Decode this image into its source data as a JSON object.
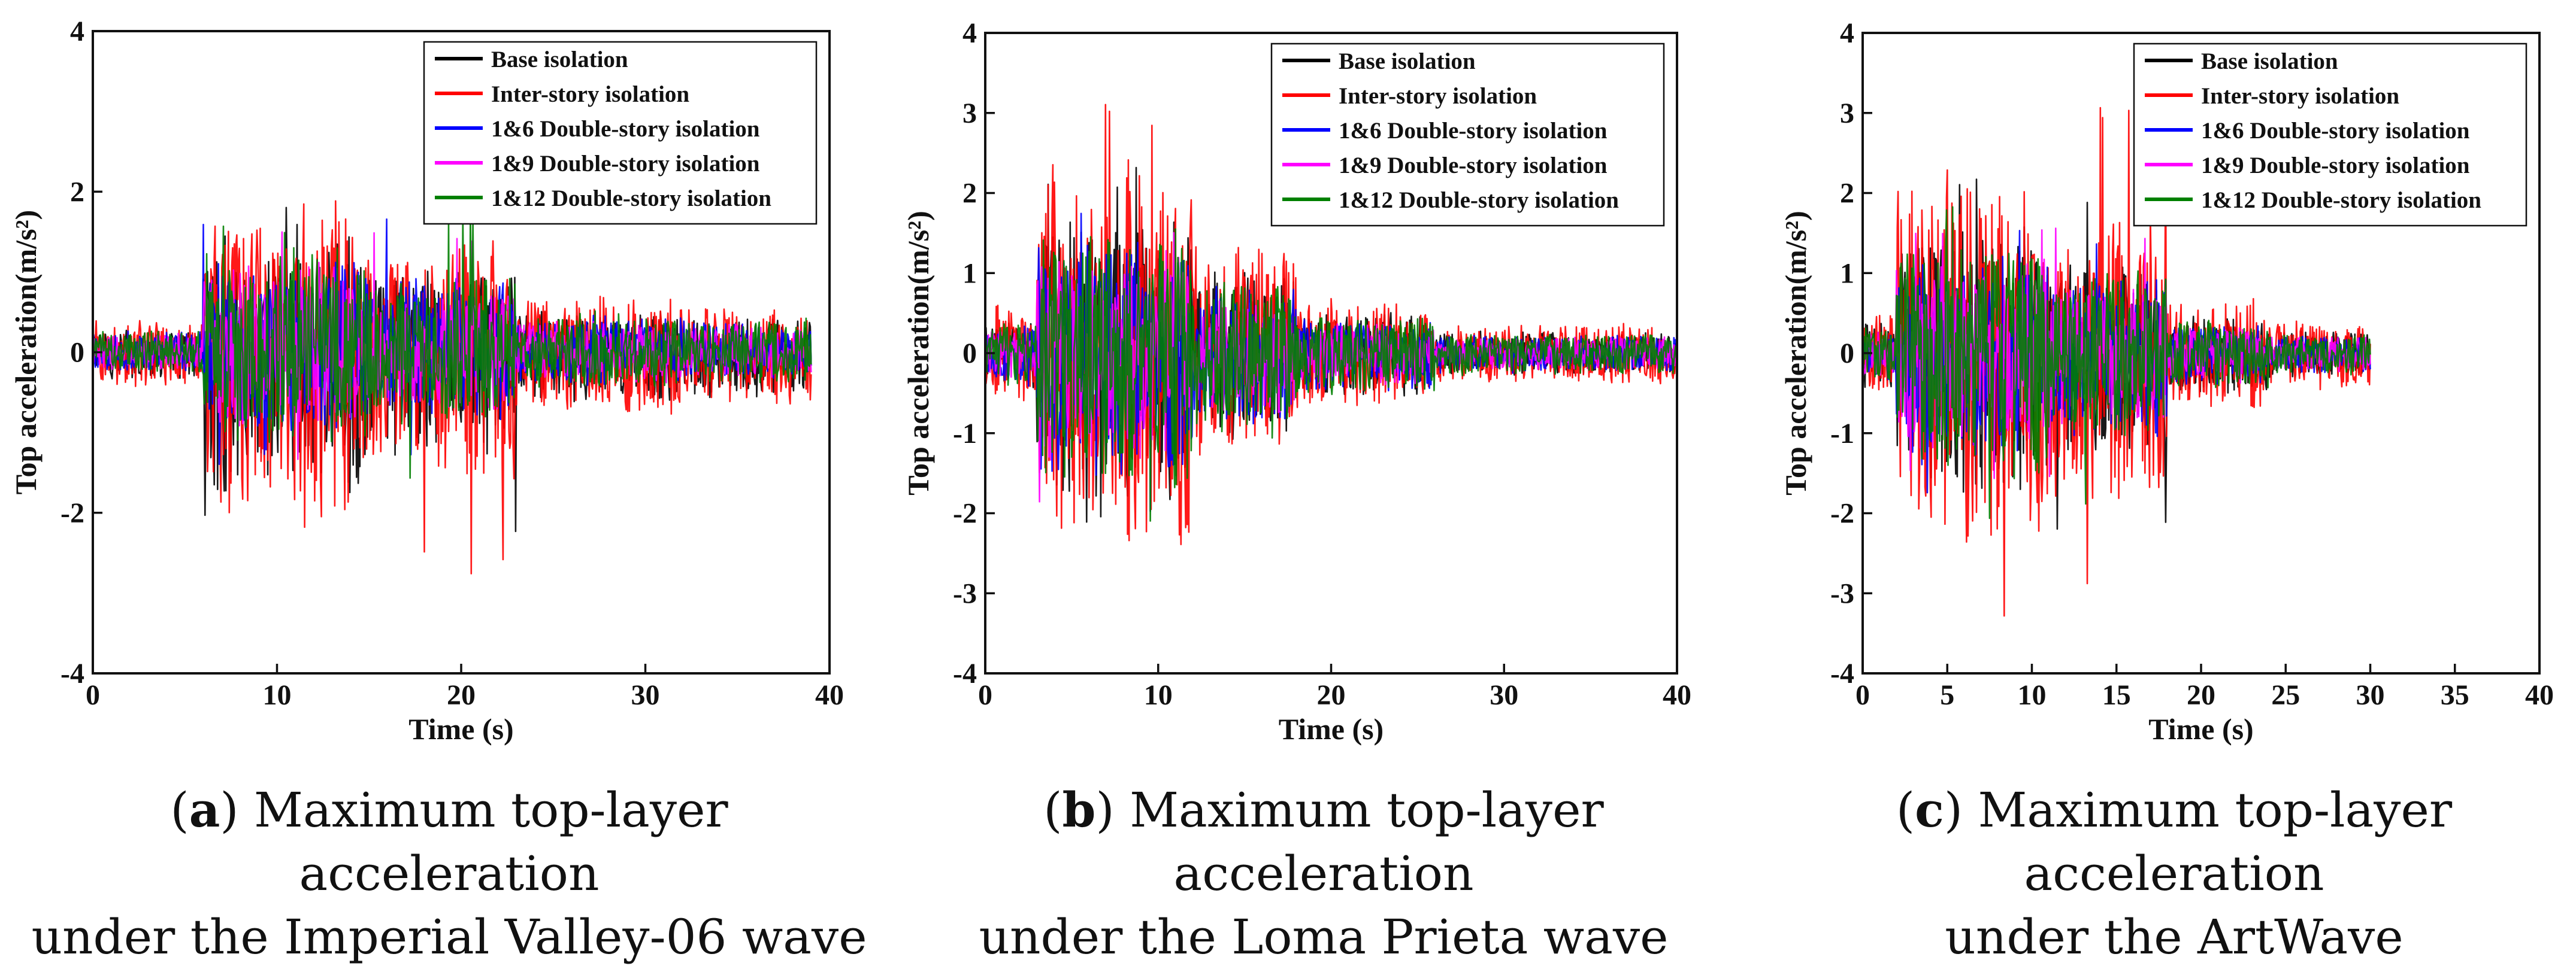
{
  "series_colors": [
    "#000000",
    "#ff0000",
    "#0000ff",
    "#ff00ff",
    "#008000"
  ],
  "chart_data": [
    {
      "type": "line",
      "xlabel": "Time (s)",
      "ylabel": "Top acceleration(m/s²)",
      "xlim": [
        0,
        40
      ],
      "ylim": [
        -4,
        4
      ],
      "xticks": [
        "0",
        "10",
        "20",
        "30",
        "40"
      ],
      "yticks": [
        "-4",
        "-2",
        "0",
        "2",
        "4"
      ],
      "legend_position": "top-right",
      "duration": 39,
      "series": [
        {
          "name": "Base isolation",
          "color": "#000000",
          "peak": 1.9,
          "peak_min": -2.4
        },
        {
          "name": "Inter-story isolation",
          "color": "#ff0000",
          "peak": 2.6,
          "peak_min": -2.9
        },
        {
          "name": "1&6 Double-story isolation",
          "color": "#0000ff",
          "peak": 1.7,
          "peak_min": -1.5
        },
        {
          "name": "1&9 Double-story isolation",
          "color": "#ff00ff",
          "peak": 1.5,
          "peak_min": -1.4
        },
        {
          "name": "1&12 Double-story isolation",
          "color": "#008000",
          "peak": 1.8,
          "peak_min": -1.6
        }
      ],
      "caption_letter": "a",
      "caption_line1": ") Maximum top-layer acceleration",
      "caption_line2": "under the Imperial Valley-06 wave"
    },
    {
      "type": "line",
      "xlabel": "Time (s)",
      "ylabel": "Top acceleration(m/s²)",
      "xlim": [
        0,
        40
      ],
      "ylim": [
        -4,
        4
      ],
      "xticks": [
        "0",
        "10",
        "20",
        "30",
        "40"
      ],
      "yticks": [
        "-4",
        "-3",
        "-2",
        "-1",
        "0",
        "1",
        "2",
        "3",
        "4"
      ],
      "legend_position": "top-right",
      "duration": 40,
      "series": [
        {
          "name": "Base isolation",
          "color": "#000000",
          "peak": 2.4,
          "peak_min": -2.5
        },
        {
          "name": "Inter-story isolation",
          "color": "#ff0000",
          "peak": 3.3,
          "peak_min": -3.3
        },
        {
          "name": "1&6 Double-story isolation",
          "color": "#0000ff",
          "peak": 1.9,
          "peak_min": -2.2
        },
        {
          "name": "1&9 Double-story isolation",
          "color": "#ff00ff",
          "peak": 1.7,
          "peak_min": -1.9
        },
        {
          "name": "1&12 Double-story isolation",
          "color": "#008000",
          "peak": 2.1,
          "peak_min": -2.4
        }
      ],
      "caption_letter": "b",
      "caption_line1": ") Maximum top-layer acceleration",
      "caption_line2": "under the Loma Prieta wave"
    },
    {
      "type": "line",
      "xlabel": "Time (s)",
      "ylabel": "Top acceleration(m/s²)",
      "xlim": [
        0,
        40
      ],
      "ylim": [
        -4,
        4
      ],
      "xticks": [
        "0",
        "5",
        "10",
        "15",
        "20",
        "25",
        "30",
        "35",
        "40"
      ],
      "yticks": [
        "-4",
        "-3",
        "-2",
        "-1",
        "0",
        "1",
        "2",
        "3",
        "4"
      ],
      "legend_position": "top-right",
      "duration": 30,
      "series": [
        {
          "name": "Base isolation",
          "color": "#000000",
          "peak": 2.2,
          "peak_min": -2.4
        },
        {
          "name": "Inter-story isolation",
          "color": "#ff0000",
          "peak": 3.1,
          "peak_min": -3.4
        },
        {
          "name": "1&6 Double-story isolation",
          "color": "#0000ff",
          "peak": 1.7,
          "peak_min": -1.9
        },
        {
          "name": "1&9 Double-story isolation",
          "color": "#ff00ff",
          "peak": 1.6,
          "peak_min": -1.7
        },
        {
          "name": "1&12 Double-story isolation",
          "color": "#008000",
          "peak": 1.9,
          "peak_min": -2.1
        }
      ],
      "caption_letter": "c",
      "caption_line1": ") Maximum top-layer acceleration",
      "caption_line2": "under the ArtWave"
    }
  ]
}
